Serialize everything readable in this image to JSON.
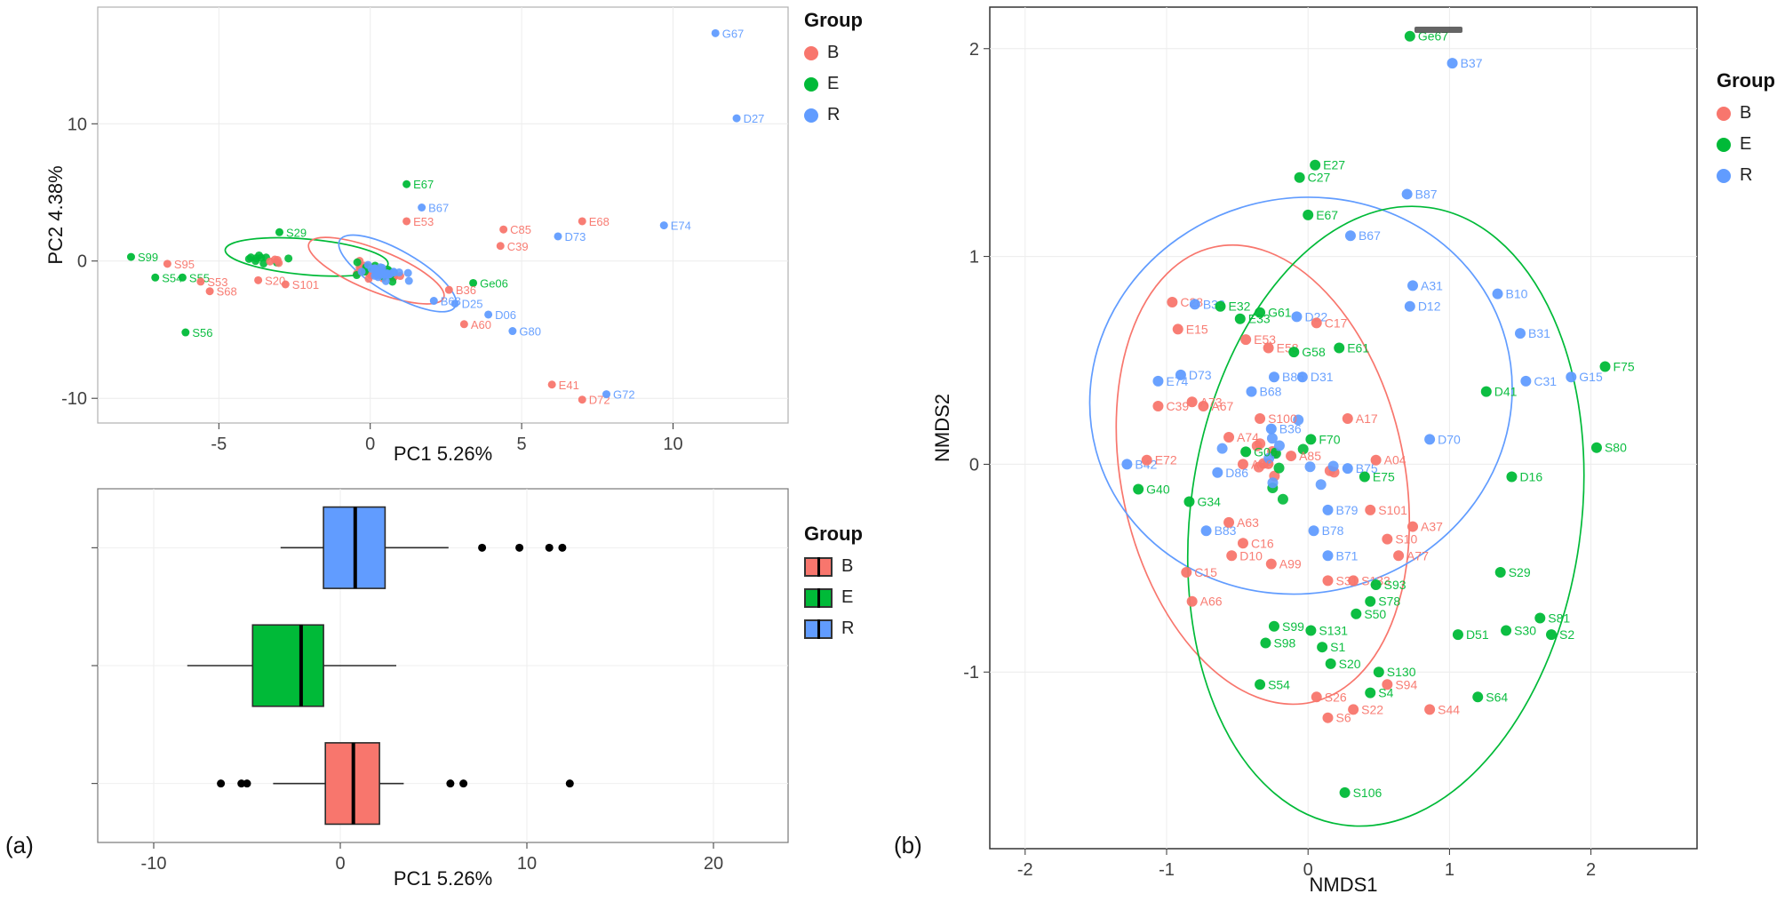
{
  "figure": {
    "panel_a_label": "(a)",
    "panel_b_label": "(b)"
  },
  "colors": {
    "B": "#F8766D",
    "E": "#00BA38",
    "R": "#619CFF"
  },
  "legend": {
    "title": "Group",
    "items": [
      {
        "label": "B",
        "group": "B"
      },
      {
        "label": "E",
        "group": "E"
      },
      {
        "label": "R",
        "group": "R"
      }
    ]
  },
  "chart_data": [
    {
      "type": "scatter",
      "name": "pca_scatter",
      "xlabel": "PC1 5.26%",
      "ylabel": "PC2 4.38%",
      "xlim": [
        -9,
        13.8
      ],
      "ylim": [
        -11.8,
        18.5
      ],
      "xticks": [
        -5,
        0,
        5,
        10
      ],
      "yticks": [
        -10,
        0,
        10
      ],
      "points": [
        {
          "label": "G67",
          "x": 11.4,
          "y": 16.6,
          "g": "R"
        },
        {
          "label": "D27",
          "x": 12.1,
          "y": 10.4,
          "g": "R"
        },
        {
          "label": "E67",
          "x": 1.2,
          "y": 5.6,
          "g": "E"
        },
        {
          "label": "B67",
          "x": 1.7,
          "y": 3.9,
          "g": "R"
        },
        {
          "label": "E53",
          "x": 1.2,
          "y": 2.9,
          "g": "B"
        },
        {
          "label": "E68",
          "x": 7.0,
          "y": 2.9,
          "g": "B"
        },
        {
          "label": "E74",
          "x": 9.7,
          "y": 2.6,
          "g": "R"
        },
        {
          "label": "C85",
          "x": 4.4,
          "y": 2.3,
          "g": "B"
        },
        {
          "label": "S29",
          "x": -3.0,
          "y": 2.1,
          "g": "E"
        },
        {
          "label": "D73",
          "x": 6.2,
          "y": 1.8,
          "g": "R"
        },
        {
          "label": "C39",
          "x": 4.3,
          "y": 1.1,
          "g": "B"
        },
        {
          "label": "S99",
          "x": -7.9,
          "y": 0.3,
          "g": "E"
        },
        {
          "label": "S95",
          "x": -6.7,
          "y": -0.2,
          "g": "B"
        },
        {
          "label": "S54",
          "x": -7.1,
          "y": -1.2,
          "g": "E"
        },
        {
          "label": "S55",
          "x": -6.2,
          "y": -1.2,
          "g": "E"
        },
        {
          "label": "S53",
          "x": -5.6,
          "y": -1.5,
          "g": "B"
        },
        {
          "label": "S20",
          "x": -3.7,
          "y": -1.4,
          "g": "B"
        },
        {
          "label": "S101",
          "x": -2.8,
          "y": -1.7,
          "g": "B"
        },
        {
          "label": "S68",
          "x": -5.3,
          "y": -2.2,
          "g": "B"
        },
        {
          "label": "S56",
          "x": -6.1,
          "y": -5.2,
          "g": "E"
        },
        {
          "label": "Ge06",
          "x": 3.4,
          "y": -1.6,
          "g": "E"
        },
        {
          "label": "B36",
          "x": 2.6,
          "y": -2.1,
          "g": "B"
        },
        {
          "label": "B68",
          "x": 2.1,
          "y": -2.9,
          "g": "R"
        },
        {
          "label": "D25",
          "x": 2.8,
          "y": -3.1,
          "g": "R"
        },
        {
          "label": "D06",
          "x": 3.9,
          "y": -3.9,
          "g": "R"
        },
        {
          "label": "A60",
          "x": 3.1,
          "y": -4.6,
          "g": "B"
        },
        {
          "label": "G80",
          "x": 4.7,
          "y": -5.1,
          "g": "R"
        },
        {
          "label": "E41",
          "x": 6.0,
          "y": -9.0,
          "g": "B"
        },
        {
          "label": "D72",
          "x": 7.0,
          "y": -10.1,
          "g": "B"
        },
        {
          "label": "G72",
          "x": 7.8,
          "y": -9.7,
          "g": "R"
        }
      ],
      "clusters": [
        {
          "center": [
            0.3,
            -0.8
          ],
          "sx": 1.3,
          "sy": 0.85,
          "corr": -0.5,
          "counts": {
            "B": 34,
            "E": 18,
            "R": 28
          },
          "seed": 5
        },
        {
          "center": [
            -3.4,
            0.1
          ],
          "sx": 1.0,
          "sy": 0.55,
          "corr": 0,
          "counts": {
            "E": 10,
            "B": 4
          },
          "seed": 9
        }
      ],
      "ellipses": [
        {
          "g": "E",
          "cx": -2.1,
          "cy": 0.3,
          "rx": 2.7,
          "ry": 1.3,
          "angle": 5
        },
        {
          "g": "B",
          "cx": 0.2,
          "cy": -0.7,
          "rx": 2.4,
          "ry": 1.5,
          "angle": 22
        },
        {
          "g": "R",
          "cx": 0.9,
          "cy": -0.9,
          "rx": 2.2,
          "ry": 1.6,
          "angle": 30
        }
      ]
    },
    {
      "type": "boxplot",
      "name": "pc1_boxplot",
      "xlabel": "PC1 5.26%",
      "xlim": [
        -13,
        24
      ],
      "xticks": [
        -10,
        0,
        10,
        20
      ],
      "rows": [
        {
          "g": "R",
          "lo": -3.2,
          "q1": -0.9,
          "med": 0.8,
          "q3": 2.4,
          "hi": 5.8,
          "outliers": [
            7.6,
            9.6,
            11.2,
            11.9
          ]
        },
        {
          "g": "E",
          "lo": -8.2,
          "q1": -4.7,
          "med": -2.1,
          "q3": -0.9,
          "hi": 3.0,
          "outliers": []
        },
        {
          "g": "B",
          "lo": -3.6,
          "q1": -0.8,
          "med": 0.7,
          "q3": 2.1,
          "hi": 3.4,
          "outliers": [
            -6.4,
            -5.3,
            -5.0,
            5.9,
            6.6,
            12.3
          ]
        }
      ]
    },
    {
      "type": "scatter",
      "name": "nmds_scatter",
      "xlabel": "NMDS1",
      "ylabel": "NMDS2",
      "xlim": [
        -2.25,
        2.75
      ],
      "ylim": [
        -1.85,
        2.2
      ],
      "xticks": [
        -2,
        -1,
        0,
        1,
        2
      ],
      "yticks": [
        -1,
        0,
        1,
        2
      ],
      "points": [
        {
          "label": "Ge67",
          "x": 0.72,
          "y": 2.06,
          "g": "E"
        },
        {
          "label": "B37",
          "x": 1.02,
          "y": 1.93,
          "g": "R"
        },
        {
          "label": "E27",
          "x": 0.05,
          "y": 1.44,
          "g": "E"
        },
        {
          "label": "C27",
          "x": -0.06,
          "y": 1.38,
          "g": "E"
        },
        {
          "label": "E67",
          "x": 0.0,
          "y": 1.2,
          "g": "E"
        },
        {
          "label": "B87",
          "x": 0.7,
          "y": 1.3,
          "g": "R"
        },
        {
          "label": "B67",
          "x": 0.3,
          "y": 1.1,
          "g": "R"
        },
        {
          "label": "A31",
          "x": 0.74,
          "y": 0.86,
          "g": "R"
        },
        {
          "label": "D12",
          "x": 0.72,
          "y": 0.76,
          "g": "R"
        },
        {
          "label": "B10",
          "x": 1.34,
          "y": 0.82,
          "g": "R"
        },
        {
          "label": "B31",
          "x": 1.5,
          "y": 0.63,
          "g": "R"
        },
        {
          "label": "C31",
          "x": 1.54,
          "y": 0.4,
          "g": "R"
        },
        {
          "label": "G15",
          "x": 1.86,
          "y": 0.42,
          "g": "R"
        },
        {
          "label": "F75",
          "x": 2.1,
          "y": 0.47,
          "g": "E"
        },
        {
          "label": "C28",
          "x": -0.96,
          "y": 0.78,
          "g": "B"
        },
        {
          "label": "B33",
          "x": -0.8,
          "y": 0.77,
          "g": "R"
        },
        {
          "label": "E15",
          "x": -0.92,
          "y": 0.65,
          "g": "B"
        },
        {
          "label": "E32",
          "x": -0.62,
          "y": 0.76,
          "g": "E"
        },
        {
          "label": "E33",
          "x": -0.48,
          "y": 0.7,
          "g": "E"
        },
        {
          "label": "G61",
          "x": -0.34,
          "y": 0.73,
          "g": "E"
        },
        {
          "label": "E53",
          "x": -0.44,
          "y": 0.6,
          "g": "B"
        },
        {
          "label": "D22",
          "x": -0.08,
          "y": 0.71,
          "g": "R"
        },
        {
          "label": "C17",
          "x": 0.06,
          "y": 0.68,
          "g": "B"
        },
        {
          "label": "E58",
          "x": -0.28,
          "y": 0.56,
          "g": "B"
        },
        {
          "label": "G58",
          "x": -0.1,
          "y": 0.54,
          "g": "E"
        },
        {
          "label": "E61",
          "x": 0.22,
          "y": 0.56,
          "g": "E"
        },
        {
          "label": "B85",
          "x": -0.24,
          "y": 0.42,
          "g": "R"
        },
        {
          "label": "D31",
          "x": -0.04,
          "y": 0.42,
          "g": "R"
        },
        {
          "label": "E74",
          "x": -1.06,
          "y": 0.4,
          "g": "R"
        },
        {
          "label": "D73",
          "x": -0.9,
          "y": 0.43,
          "g": "R"
        },
        {
          "label": "C39",
          "x": -1.06,
          "y": 0.28,
          "g": "B"
        },
        {
          "label": "A67",
          "x": -0.74,
          "y": 0.28,
          "g": "B"
        },
        {
          "label": "B68",
          "x": -0.4,
          "y": 0.35,
          "g": "R"
        },
        {
          "label": "A73",
          "x": -0.82,
          "y": 0.3,
          "g": "B"
        },
        {
          "label": "S100",
          "x": -0.34,
          "y": 0.22,
          "g": "B"
        },
        {
          "label": "A74",
          "x": -0.56,
          "y": 0.13,
          "g": "B"
        },
        {
          "label": "G06",
          "x": -0.44,
          "y": 0.06,
          "g": "E"
        },
        {
          "label": "B36",
          "x": -0.26,
          "y": 0.17,
          "g": "R"
        },
        {
          "label": "F70",
          "x": 0.02,
          "y": 0.12,
          "g": "E"
        },
        {
          "label": "A85",
          "x": -0.12,
          "y": 0.04,
          "g": "B"
        },
        {
          "label": "A17",
          "x": 0.28,
          "y": 0.22,
          "g": "B"
        },
        {
          "label": "B75",
          "x": 0.28,
          "y": -0.02,
          "g": "R"
        },
        {
          "label": "E75",
          "x": 0.4,
          "y": -0.06,
          "g": "E"
        },
        {
          "label": "A04",
          "x": 0.48,
          "y": 0.02,
          "g": "B"
        },
        {
          "label": "D70",
          "x": 0.86,
          "y": 0.12,
          "g": "R"
        },
        {
          "label": "D41",
          "x": 1.26,
          "y": 0.35,
          "g": "E"
        },
        {
          "label": "D16",
          "x": 1.44,
          "y": -0.06,
          "g": "E"
        },
        {
          "label": "A69",
          "x": -0.46,
          "y": 0.0,
          "g": "B"
        },
        {
          "label": "D86",
          "x": -0.64,
          "y": -0.04,
          "g": "R"
        },
        {
          "label": "B42",
          "x": -1.28,
          "y": 0.0,
          "g": "R"
        },
        {
          "label": "E72",
          "x": -1.14,
          "y": 0.02,
          "g": "B"
        },
        {
          "label": "G40",
          "x": -1.2,
          "y": -0.12,
          "g": "E"
        },
        {
          "label": "G34",
          "x": -0.84,
          "y": -0.18,
          "g": "E"
        },
        {
          "label": "D10",
          "x": -0.54,
          "y": -0.44,
          "g": "B"
        },
        {
          "label": "B79",
          "x": 0.14,
          "y": -0.22,
          "g": "R"
        },
        {
          "label": "S101",
          "x": 0.44,
          "y": -0.22,
          "g": "B"
        },
        {
          "label": "B78",
          "x": 0.04,
          "y": -0.32,
          "g": "R"
        },
        {
          "label": "B71",
          "x": 0.14,
          "y": -0.44,
          "g": "R"
        },
        {
          "label": "S10",
          "x": 0.56,
          "y": -0.36,
          "g": "B"
        },
        {
          "label": "A77",
          "x": 0.64,
          "y": -0.44,
          "g": "B"
        },
        {
          "label": "A37",
          "x": 0.74,
          "y": -0.3,
          "g": "B"
        },
        {
          "label": "B83",
          "x": -0.72,
          "y": -0.32,
          "g": "R"
        },
        {
          "label": "C16",
          "x": -0.46,
          "y": -0.38,
          "g": "B"
        },
        {
          "label": "A63",
          "x": -0.56,
          "y": -0.28,
          "g": "B"
        },
        {
          "label": "A99",
          "x": -0.26,
          "y": -0.48,
          "g": "B"
        },
        {
          "label": "C15",
          "x": -0.86,
          "y": -0.52,
          "g": "B"
        },
        {
          "label": "A66",
          "x": -0.82,
          "y": -0.66,
          "g": "B"
        },
        {
          "label": "S31",
          "x": 0.14,
          "y": -0.56,
          "g": "B"
        },
        {
          "label": "S133",
          "x": 0.32,
          "y": -0.56,
          "g": "B"
        },
        {
          "label": "S93",
          "x": 0.48,
          "y": -0.58,
          "g": "E"
        },
        {
          "label": "S78",
          "x": 0.44,
          "y": -0.66,
          "g": "E"
        },
        {
          "label": "S50",
          "x": 0.34,
          "y": -0.72,
          "g": "E"
        },
        {
          "label": "S99",
          "x": -0.24,
          "y": -0.78,
          "g": "E"
        },
        {
          "label": "S98",
          "x": -0.3,
          "y": -0.86,
          "g": "E"
        },
        {
          "label": "S131",
          "x": 0.02,
          "y": -0.8,
          "g": "E"
        },
        {
          "label": "S1",
          "x": 0.1,
          "y": -0.88,
          "g": "E"
        },
        {
          "label": "S20",
          "x": 0.16,
          "y": -0.96,
          "g": "E"
        },
        {
          "label": "S54",
          "x": -0.34,
          "y": -1.06,
          "g": "E"
        },
        {
          "label": "S26",
          "x": 0.06,
          "y": -1.12,
          "g": "B"
        },
        {
          "label": "S6",
          "x": 0.14,
          "y": -1.22,
          "g": "B"
        },
        {
          "label": "S22",
          "x": 0.32,
          "y": -1.18,
          "g": "B"
        },
        {
          "label": "S94",
          "x": 0.56,
          "y": -1.06,
          "g": "B"
        },
        {
          "label": "S130",
          "x": 0.5,
          "y": -1.0,
          "g": "E"
        },
        {
          "label": "S4",
          "x": 0.44,
          "y": -1.1,
          "g": "E"
        },
        {
          "label": "S44",
          "x": 0.86,
          "y": -1.18,
          "g": "B"
        },
        {
          "label": "S64",
          "x": 1.2,
          "y": -1.12,
          "g": "E"
        },
        {
          "label": "D51",
          "x": 1.06,
          "y": -0.82,
          "g": "E"
        },
        {
          "label": "S29",
          "x": 1.36,
          "y": -0.52,
          "g": "E"
        },
        {
          "label": "S30",
          "x": 1.4,
          "y": -0.8,
          "g": "E"
        },
        {
          "label": "S81",
          "x": 1.64,
          "y": -0.74,
          "g": "E"
        },
        {
          "label": "S2",
          "x": 1.72,
          "y": -0.82,
          "g": "E"
        },
        {
          "label": "S80",
          "x": 2.04,
          "y": 0.08,
          "g": "E"
        },
        {
          "label": "S106",
          "x": 0.26,
          "y": -1.58,
          "g": "E"
        }
      ],
      "clusters": [
        {
          "center": [
            -0.15,
            0.05
          ],
          "sx": 0.5,
          "sy": 0.42,
          "corr": 0,
          "counts": {
            "B": 10,
            "E": 5,
            "R": 9
          },
          "seed": 11
        }
      ],
      "ellipses": [
        {
          "g": "B",
          "cx": -0.32,
          "cy": -0.05,
          "rx": 1.0,
          "ry": 1.12,
          "angle": -12
        },
        {
          "g": "R",
          "cx": -0.05,
          "cy": 0.33,
          "rx": 1.5,
          "ry": 0.95,
          "angle": -15
        },
        {
          "g": "E",
          "cx": 0.55,
          "cy": -0.25,
          "rx": 1.38,
          "ry": 1.5,
          "angle": 8
        }
      ]
    }
  ]
}
